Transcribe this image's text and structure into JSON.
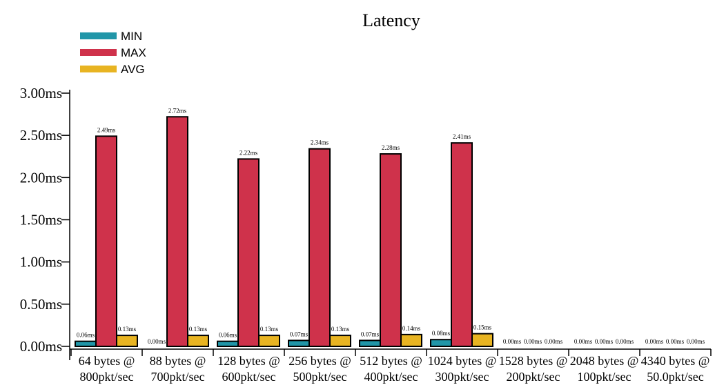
{
  "chart_data": {
    "type": "bar",
    "title": "Latency",
    "xlabel": "",
    "ylabel": "",
    "ylim": [
      0,
      3.0
    ],
    "yticks": [
      "0.00ms",
      "0.50ms",
      "1.00ms",
      "1.50ms",
      "2.00ms",
      "2.50ms",
      "3.00ms"
    ],
    "categories": [
      [
        "64 bytes @",
        "800pkt/sec"
      ],
      [
        "88 bytes @",
        "700pkt/sec"
      ],
      [
        "128 bytes @",
        "600pkt/sec"
      ],
      [
        "256 bytes @",
        "500pkt/sec"
      ],
      [
        "512 bytes @",
        "400pkt/sec"
      ],
      [
        "1024 bytes @",
        "300pkt/sec"
      ],
      [
        "1528 bytes @",
        "200pkt/sec"
      ],
      [
        "2048 bytes @",
        "100pkt/sec"
      ],
      [
        "4340 bytes @",
        "50.0pkt/sec"
      ]
    ],
    "series": [
      {
        "name": "MIN",
        "color": "#2196a8",
        "values": [
          0.06,
          0.0,
          0.06,
          0.07,
          0.07,
          0.08,
          0.0,
          0.0,
          0.0
        ],
        "labels": [
          "0.06ms",
          "0.00ms",
          "0.06ms",
          "0.07ms",
          "0.07ms",
          "0.08ms",
          "0.00ms",
          "0.00ms",
          "0.00ms"
        ]
      },
      {
        "name": "MAX",
        "color": "#cf324b",
        "values": [
          2.49,
          2.72,
          2.22,
          2.34,
          2.28,
          2.41,
          0.0,
          0.0,
          0.0
        ],
        "labels": [
          "2.49ms",
          "2.72ms",
          "2.22ms",
          "2.34ms",
          "2.28ms",
          "2.41ms",
          "0.00ms",
          "0.00ms",
          "0.00ms"
        ]
      },
      {
        "name": "AVG",
        "color": "#e8b422",
        "values": [
          0.13,
          0.13,
          0.13,
          0.13,
          0.14,
          0.15,
          0.0,
          0.0,
          0.0
        ],
        "labels": [
          "0.13ms",
          "0.13ms",
          "0.13ms",
          "0.13ms",
          "0.14ms",
          "0.15ms",
          "0.00ms",
          "0.00ms",
          "0.00ms"
        ]
      }
    ],
    "legend": "top-left",
    "grid": false
  }
}
